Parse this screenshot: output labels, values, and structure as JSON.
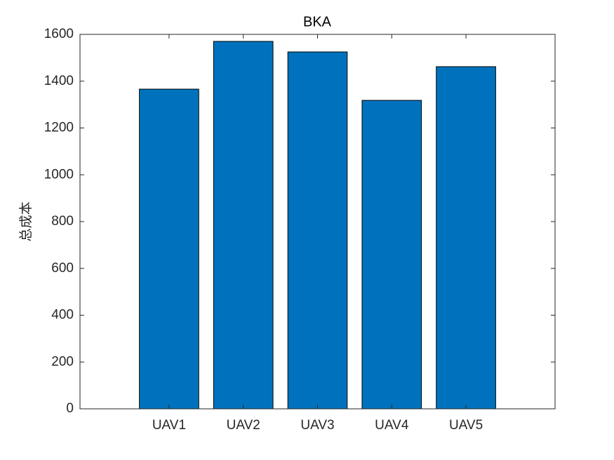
{
  "chart_data": {
    "type": "bar",
    "title": "BKA",
    "y_label": "总成本",
    "categories": [
      "UAV1",
      "UAV2",
      "UAV3",
      "UAV4",
      "UAV5"
    ],
    "values": [
      1366,
      1570,
      1525,
      1318,
      1462
    ],
    "color": "#0072bd",
    "ylim": [
      0,
      1600
    ],
    "yticks": [
      0,
      200,
      400,
      600,
      800,
      1000,
      1200,
      1400,
      1600
    ]
  }
}
